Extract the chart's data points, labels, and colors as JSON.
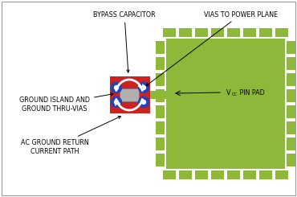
{
  "bg_color": "#ffffff",
  "border_color": "#999999",
  "green_color": "#8db83a",
  "red_color": "#cc2222",
  "blue_color": "#2244bb",
  "gray_cap_fill": "#aaaaaa",
  "gray_cap_edge": "#888888",
  "label_font_size": 5.8,
  "bypass_label": "BYPASS CAPACITOR",
  "vias_label": "VIAS TO POWER PLANE",
  "ground_island_label": "GROUND ISLAND AND\nGROUND THRU-VIAS",
  "ac_ground_label": "AC GROUND RETURN\nCURRENT PATH",
  "fig_width": 3.7,
  "fig_height": 2.45,
  "dpi": 100
}
